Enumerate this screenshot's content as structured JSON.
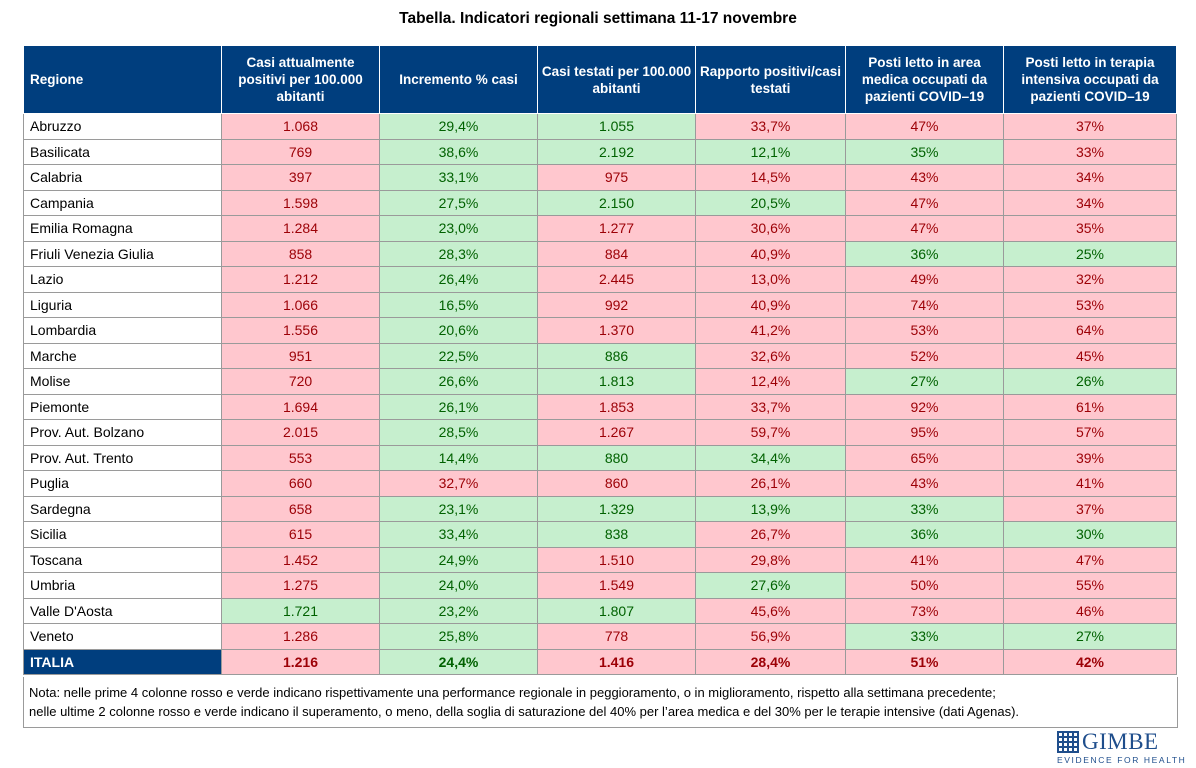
{
  "title": "Tabella. Indicatori regionali settimana 11-17 novembre",
  "colors": {
    "header_bg": "#003e7e",
    "red_bg": "#ffc7ce",
    "red_text": "#9c0006",
    "green_bg": "#c6efce",
    "green_text": "#006100"
  },
  "headers": [
    "Regione",
    "Casi attualmente positivi per 100.000 abitanti",
    "Incremento % casi",
    "Casi testati per 100.000 abitanti",
    "Rapporto positivi/casi testati",
    "Posti letto in area medica occupati da pazienti COVID–19",
    "Posti letto in terapia intensiva occupati da pazienti COVID–19"
  ],
  "rows": [
    {
      "region": "Abruzzo",
      "values": [
        "1.068",
        "29,4%",
        "1.055",
        "33,7%",
        "47%",
        "37%"
      ],
      "status": [
        "red",
        "green",
        "green",
        "red",
        "red",
        "red"
      ]
    },
    {
      "region": "Basilicata",
      "values": [
        "769",
        "38,6%",
        "2.192",
        "12,1%",
        "35%",
        "33%"
      ],
      "status": [
        "red",
        "green",
        "green",
        "green",
        "green",
        "red"
      ]
    },
    {
      "region": "Calabria",
      "values": [
        "397",
        "33,1%",
        "975",
        "14,5%",
        "43%",
        "34%"
      ],
      "status": [
        "red",
        "green",
        "red",
        "red",
        "red",
        "red"
      ]
    },
    {
      "region": "Campania",
      "values": [
        "1.598",
        "27,5%",
        "2.150",
        "20,5%",
        "47%",
        "34%"
      ],
      "status": [
        "red",
        "green",
        "green",
        "green",
        "red",
        "red"
      ]
    },
    {
      "region": "Emilia Romagna",
      "values": [
        "1.284",
        "23,0%",
        "1.277",
        "30,6%",
        "47%",
        "35%"
      ],
      "status": [
        "red",
        "green",
        "red",
        "red",
        "red",
        "red"
      ]
    },
    {
      "region": "Friuli Venezia Giulia",
      "values": [
        "858",
        "28,3%",
        "884",
        "40,9%",
        "36%",
        "25%"
      ],
      "status": [
        "red",
        "green",
        "red",
        "red",
        "green",
        "green"
      ]
    },
    {
      "region": "Lazio",
      "values": [
        "1.212",
        "26,4%",
        "2.445",
        "13,0%",
        "49%",
        "32%"
      ],
      "status": [
        "red",
        "green",
        "red",
        "red",
        "red",
        "red"
      ]
    },
    {
      "region": "Liguria",
      "values": [
        "1.066",
        "16,5%",
        "992",
        "40,9%",
        "74%",
        "53%"
      ],
      "status": [
        "red",
        "green",
        "red",
        "red",
        "red",
        "red"
      ]
    },
    {
      "region": "Lombardia",
      "values": [
        "1.556",
        "20,6%",
        "1.370",
        "41,2%",
        "53%",
        "64%"
      ],
      "status": [
        "red",
        "green",
        "red",
        "red",
        "red",
        "red"
      ]
    },
    {
      "region": "Marche",
      "values": [
        "951",
        "22,5%",
        "886",
        "32,6%",
        "52%",
        "45%"
      ],
      "status": [
        "red",
        "green",
        "green",
        "red",
        "red",
        "red"
      ]
    },
    {
      "region": "Molise",
      "values": [
        "720",
        "26,6%",
        "1.813",
        "12,4%",
        "27%",
        "26%"
      ],
      "status": [
        "red",
        "green",
        "green",
        "red",
        "green",
        "green"
      ]
    },
    {
      "region": "Piemonte",
      "values": [
        "1.694",
        "26,1%",
        "1.853",
        "33,7%",
        "92%",
        "61%"
      ],
      "status": [
        "red",
        "green",
        "red",
        "red",
        "red",
        "red"
      ]
    },
    {
      "region": "Prov. Aut. Bolzano",
      "values": [
        "2.015",
        "28,5%",
        "1.267",
        "59,7%",
        "95%",
        "57%"
      ],
      "status": [
        "red",
        "green",
        "red",
        "red",
        "red",
        "red"
      ]
    },
    {
      "region": "Prov. Aut. Trento",
      "values": [
        "553",
        "14,4%",
        "880",
        "34,4%",
        "65%",
        "39%"
      ],
      "status": [
        "red",
        "green",
        "green",
        "green",
        "red",
        "red"
      ]
    },
    {
      "region": "Puglia",
      "values": [
        "660",
        "32,7%",
        "860",
        "26,1%",
        "43%",
        "41%"
      ],
      "status": [
        "red",
        "red",
        "red",
        "red",
        "red",
        "red"
      ]
    },
    {
      "region": "Sardegna",
      "values": [
        "658",
        "23,1%",
        "1.329",
        "13,9%",
        "33%",
        "37%"
      ],
      "status": [
        "red",
        "green",
        "green",
        "green",
        "green",
        "red"
      ]
    },
    {
      "region": "Sicilia",
      "values": [
        "615",
        "33,4%",
        "838",
        "26,7%",
        "36%",
        "30%"
      ],
      "status": [
        "red",
        "green",
        "green",
        "red",
        "green",
        "green"
      ]
    },
    {
      "region": "Toscana",
      "values": [
        "1.452",
        "24,9%",
        "1.510",
        "29,8%",
        "41%",
        "47%"
      ],
      "status": [
        "red",
        "green",
        "red",
        "red",
        "red",
        "red"
      ]
    },
    {
      "region": "Umbria",
      "values": [
        "1.275",
        "24,0%",
        "1.549",
        "27,6%",
        "50%",
        "55%"
      ],
      "status": [
        "red",
        "green",
        "red",
        "green",
        "red",
        "red"
      ]
    },
    {
      "region": "Valle D'Aosta",
      "values": [
        "1.721",
        "23,2%",
        "1.807",
        "45,6%",
        "73%",
        "46%"
      ],
      "status": [
        "green",
        "green",
        "green",
        "red",
        "red",
        "red"
      ]
    },
    {
      "region": "Veneto",
      "values": [
        "1.286",
        "25,8%",
        "778",
        "56,9%",
        "33%",
        "27%"
      ],
      "status": [
        "red",
        "green",
        "red",
        "red",
        "green",
        "green"
      ]
    }
  ],
  "total": {
    "region": "ITALIA",
    "values": [
      "1.216",
      "24,4%",
      "1.416",
      "28,4%",
      "51%",
      "42%"
    ],
    "status": [
      "red",
      "green",
      "red",
      "red",
      "red",
      "red"
    ]
  },
  "note": [
    "Nota: nelle prime 4 colonne rosso e verde indicano rispettivamente una performance regionale in peggioramento, o in miglioramento, rispetto alla settimana precedente;",
    "nelle ultime 2 colonne rosso e verde indicano il superamento, o meno, della soglia di saturazione del 40% per l’area medica e del 30% per le terapie intensive (dati Agenas)."
  ],
  "logo": {
    "name": "GIMBE",
    "tagline": "EVIDENCE FOR HEALTH"
  }
}
